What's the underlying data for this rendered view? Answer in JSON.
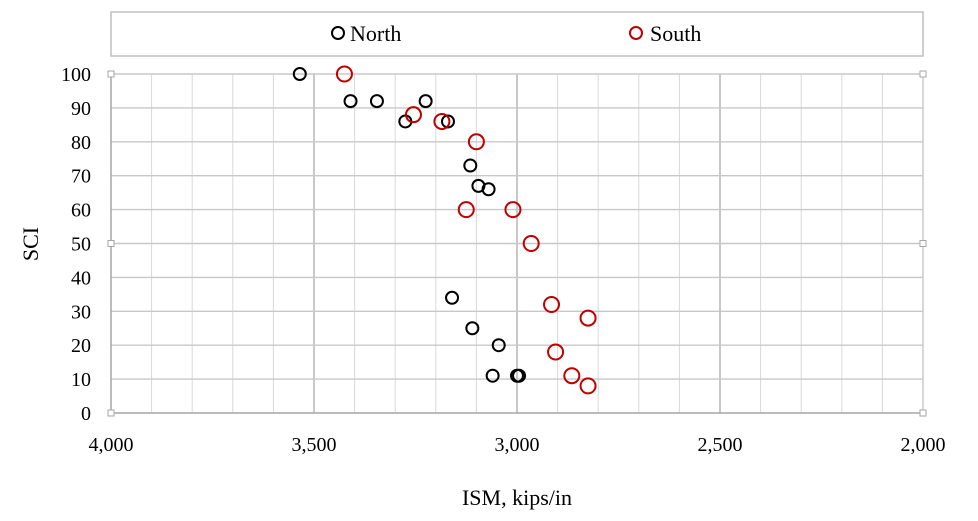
{
  "chart_data": {
    "type": "scatter",
    "title": "",
    "xlabel": "ISM, kips/in",
    "ylabel": "SCI",
    "xlim": [
      4000,
      2000
    ],
    "ylim": [
      0,
      100
    ],
    "x_reversed": true,
    "x_ticks": [
      "4,000",
      "3,500",
      "3,000",
      "2,500",
      "2,000"
    ],
    "y_ticks": [
      "0",
      "10",
      "20",
      "30",
      "40",
      "50",
      "60",
      "70",
      "80",
      "90",
      "100"
    ],
    "grid": true,
    "legend_position": "top",
    "series": [
      {
        "name": "North",
        "color": "#000000",
        "marker": "open-circle",
        "points": [
          [
            3535,
            100
          ],
          [
            3410,
            92
          ],
          [
            3345,
            92
          ],
          [
            3225,
            92
          ],
          [
            3275,
            86
          ],
          [
            3170,
            86
          ],
          [
            3115,
            73
          ],
          [
            3095,
            67
          ],
          [
            3070,
            66
          ],
          [
            3160,
            34
          ],
          [
            3110,
            25
          ],
          [
            3045,
            20
          ],
          [
            3060,
            11
          ],
          [
            3000,
            11
          ],
          [
            2995,
            11
          ]
        ]
      },
      {
        "name": "South",
        "color": "#c00000",
        "marker": "open-circle",
        "points": [
          [
            3425,
            100
          ],
          [
            3255,
            88
          ],
          [
            3185,
            86
          ],
          [
            3100,
            80
          ],
          [
            3125,
            60
          ],
          [
            3010,
            60
          ],
          [
            2965,
            50
          ],
          [
            2915,
            32
          ],
          [
            2825,
            28
          ],
          [
            2905,
            18
          ],
          [
            2865,
            11
          ],
          [
            2825,
            8
          ]
        ]
      }
    ]
  }
}
